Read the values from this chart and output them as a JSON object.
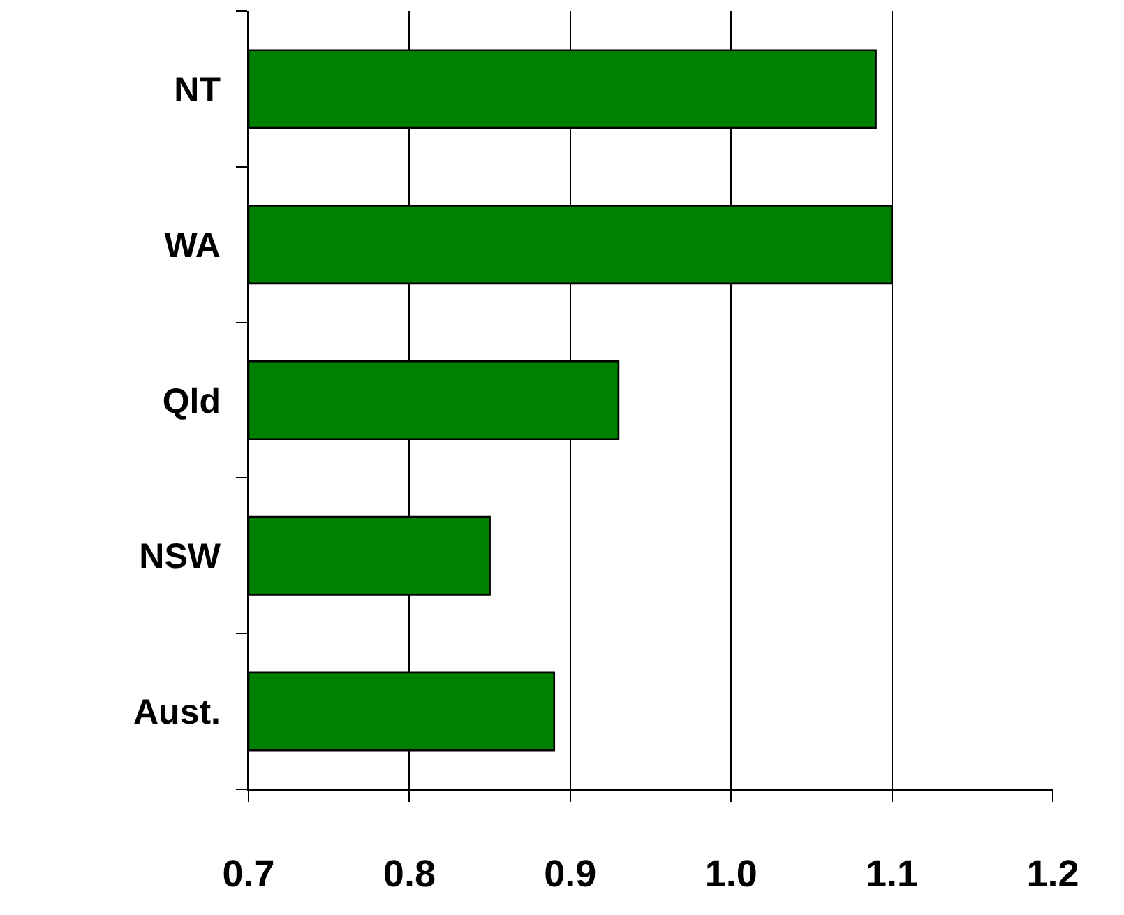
{
  "chart_data": {
    "type": "bar",
    "orientation": "horizontal",
    "categories": [
      "NT",
      "WA",
      "Qld",
      "NSW",
      "Aust."
    ],
    "values": [
      1.09,
      1.1,
      0.93,
      0.85,
      0.89
    ],
    "color": "#008000",
    "xlim": [
      0.7,
      1.2
    ],
    "xticks": [
      {
        "value": 0.7,
        "label": "0.7"
      },
      {
        "value": 0.8,
        "label": "0.8"
      },
      {
        "value": 0.9,
        "label": "0.9"
      },
      {
        "value": 1.0,
        "label": "1.0"
      },
      {
        "value": 1.1,
        "label": "1.1"
      },
      {
        "value": 1.2,
        "label": "1.2"
      }
    ],
    "grid": "x"
  }
}
